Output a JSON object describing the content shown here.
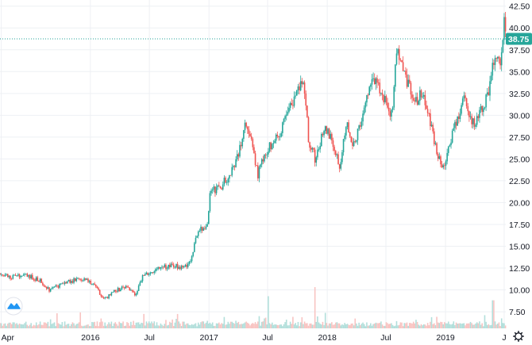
{
  "colors": {
    "up": "#26a69a",
    "down": "#ef5350",
    "up_volume": "#b2dfdb",
    "down_volume": "#f8c4c2",
    "grid": "#eef0f4",
    "last_price": "#26a69a",
    "logo": "#2196f3"
  },
  "chart_data": {
    "type": "candlestick",
    "title": "",
    "xlabel": "",
    "ylabel": "",
    "x_scale": "time",
    "ylim": [
      5.6,
      43.2
    ],
    "grid": true,
    "legend": "none",
    "last_price": 38.75,
    "last_price_label": "38.75",
    "y_ticks": [
      "7.50",
      "10.00",
      "12.50",
      "15.00",
      "17.50",
      "20.00",
      "22.50",
      "25.00",
      "27.50",
      "30.00",
      "32.50",
      "35.00",
      "37.50",
      "40.00",
      "42.50"
    ],
    "x_ticks": [
      {
        "t": "2015-04-01",
        "label": "Apr"
      },
      {
        "t": "2016-01-01",
        "label": "2016"
      },
      {
        "t": "2016-07-01",
        "label": "Jul"
      },
      {
        "t": "2017-01-01",
        "label": "2017"
      },
      {
        "t": "2017-07-01",
        "label": "Jul"
      },
      {
        "t": "2018-01-01",
        "label": "2018"
      },
      {
        "t": "2018-07-01",
        "label": "Jul"
      },
      {
        "t": "2019-01-01",
        "label": "2019"
      },
      {
        "t": "2019-07-01",
        "label": "J"
      }
    ],
    "x_range": [
      "2015-03-28",
      "2019-07-06"
    ],
    "price_series": {
      "name": "",
      "date": [
        "2015-03-28",
        "2015-05-01",
        "2015-06-15",
        "2015-08-01",
        "2015-08-25",
        "2015-10-15",
        "2015-12-01",
        "2016-01-10",
        "2016-02-12",
        "2016-03-15",
        "2016-04-20",
        "2016-05-20",
        "2016-06-10",
        "2016-07-15",
        "2016-08-15",
        "2016-09-15",
        "2016-10-15",
        "2016-11-05",
        "2016-11-25",
        "2016-12-15",
        "2016-12-29",
        "2017-01-03",
        "2017-02-01",
        "2017-02-25",
        "2017-03-15",
        "2017-04-05",
        "2017-04-25",
        "2017-05-10",
        "2017-06-01",
        "2017-06-20",
        "2017-07-05",
        "2017-07-20",
        "2017-08-10",
        "2017-09-01",
        "2017-09-25",
        "2017-10-10",
        "2017-10-20",
        "2017-11-05",
        "2017-11-25",
        "2017-12-15",
        "2017-12-29",
        "2018-01-15",
        "2018-02-09",
        "2018-03-01",
        "2018-03-20",
        "2018-04-10",
        "2018-04-30",
        "2018-05-20",
        "2018-06-10",
        "2018-06-30",
        "2018-07-20",
        "2018-08-05",
        "2018-08-20",
        "2018-09-10",
        "2018-09-30",
        "2018-10-20",
        "2018-11-10",
        "2018-11-25",
        "2018-12-10",
        "2018-12-26",
        "2019-01-20",
        "2019-02-15",
        "2019-03-01",
        "2019-03-20",
        "2019-04-05",
        "2019-04-25",
        "2019-05-10",
        "2019-05-20",
        "2019-06-05",
        "2019-06-20",
        "2019-07-01",
        "2019-07-06"
      ],
      "value": [
        11.9,
        11.4,
        11.8,
        11.0,
        10.0,
        10.8,
        11.3,
        10.8,
        8.8,
        9.9,
        10.3,
        9.4,
        11.5,
        12.2,
        12.6,
        12.8,
        12.5,
        13.4,
        16.5,
        17.2,
        17.8,
        21.5,
        21.5,
        22.8,
        24.0,
        26.0,
        29.3,
        27.4,
        23.2,
        25.6,
        26.3,
        27.2,
        28.2,
        30.5,
        32.3,
        33.3,
        34.4,
        27.0,
        25.0,
        27.5,
        28.6,
        26.9,
        24.3,
        29.5,
        26.0,
        28.5,
        31.5,
        34.2,
        33.0,
        31.8,
        30.0,
        38.2,
        35.2,
        33.5,
        31.5,
        32.5,
        30.0,
        27.5,
        25.0,
        23.8,
        27.5,
        30.5,
        32.5,
        29.6,
        29.0,
        31.0,
        32.0,
        34.5,
        36.5,
        35.7,
        41.5,
        38.75
      ]
    },
    "volume_series": {
      "name": "",
      "unit": "fraction_of_spike",
      "notable_spikes": [
        {
          "date": "2017-07-03",
          "value": 0.78
        },
        {
          "date": "2017-11-25",
          "value": 1.0
        },
        {
          "date": "2019-05-28",
          "value": 0.68
        }
      ]
    }
  }
}
